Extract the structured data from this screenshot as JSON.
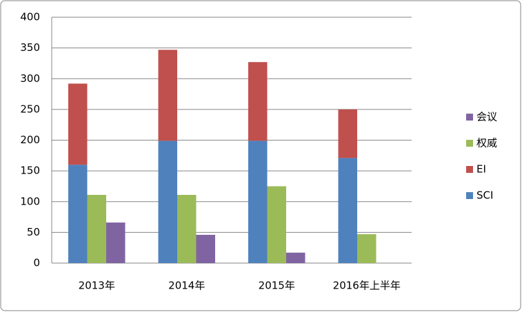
{
  "chart_data": {
    "type": "bar",
    "categories": [
      "2013年",
      "2014年",
      "2015年",
      "2016年上半年"
    ],
    "series": [
      {
        "name": "SCI",
        "color": "#4f81bd",
        "stack": "a",
        "values": [
          160,
          199,
          199,
          171
        ]
      },
      {
        "name": "EI",
        "color": "#c0504d",
        "stack": "a",
        "values": [
          132,
          148,
          128,
          79
        ]
      },
      {
        "name": "权威",
        "color": "#9bbb59",
        "values": [
          111,
          111,
          125,
          47
        ]
      },
      {
        "name": "会议",
        "color": "#8064a2",
        "values": [
          66,
          46,
          17,
          0
        ]
      }
    ],
    "ylim": [
      0,
      400
    ],
    "yticks": [
      0,
      50,
      100,
      150,
      200,
      250,
      300,
      350,
      400
    ],
    "grid": true,
    "legend": "right"
  }
}
